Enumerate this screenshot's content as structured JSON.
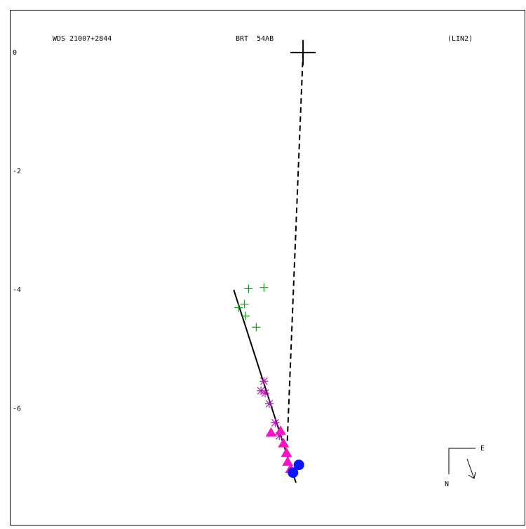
{
  "chart_data": {
    "type": "scatter",
    "title": "WDS 21007+2844",
    "subtitle": "BRT  54AB",
    "annotation": "(LIN2)",
    "compass": {
      "east": "E",
      "north": "N"
    },
    "xlim": [
      -4.95,
      3.74
    ],
    "ylim": [
      -7.96,
      0.72
    ],
    "yticks": [
      0,
      -2,
      -4,
      -6
    ],
    "origin": {
      "x": 0,
      "y": 0
    },
    "series": [
      {
        "marker": "plus",
        "color": "#1a9a1a",
        "x": [
          -0.92,
          -0.66,
          -0.99,
          -1.09,
          -0.97,
          -0.79
        ],
        "y": [
          -3.98,
          -3.96,
          -4.24,
          -4.3,
          -4.44,
          -4.63
        ]
      },
      {
        "marker": "asterisk",
        "color": "#b020b0",
        "x": [
          -0.66,
          -0.71,
          -0.64,
          -0.57,
          -0.47,
          -0.4
        ],
        "y": [
          -5.54,
          -5.7,
          -5.74,
          -5.92,
          -6.24,
          -6.46
        ]
      },
      {
        "marker": "triangle",
        "color": "#ff10c8",
        "x": [
          -0.54,
          -0.38,
          -0.33,
          -0.28,
          -0.26,
          -0.21
        ],
        "y": [
          -6.41,
          -6.38,
          -6.59,
          -6.75,
          -6.9,
          -7.02
        ]
      },
      {
        "marker": "circle",
        "color": "#0a14ff",
        "x": [
          -0.17,
          -0.07
        ],
        "y": [
          -7.08,
          -6.95
        ]
      }
    ],
    "lines": [
      {
        "color": "#000000",
        "dash": false,
        "x": [
          -1.17,
          -0.12
        ],
        "y": [
          -4.0,
          -7.25
        ]
      },
      {
        "color": "#000000",
        "dash": true,
        "x": [
          0,
          -0.27
        ],
        "y": [
          0,
          -6.65
        ]
      }
    ]
  }
}
